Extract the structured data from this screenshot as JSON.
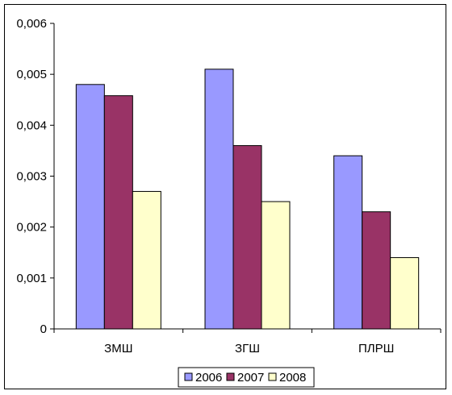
{
  "chart_data": {
    "type": "bar",
    "categories": [
      "ЗМШ",
      "ЗГШ",
      "ПЛРШ"
    ],
    "series": [
      {
        "name": "2006",
        "color": "#9999ff",
        "values": [
          0.0048,
          0.0051,
          0.0034
        ]
      },
      {
        "name": "2007",
        "color": "#993366",
        "values": [
          0.00458,
          0.0036,
          0.0023
        ]
      },
      {
        "name": "2008",
        "color": "#ffffcc",
        "values": [
          0.0027,
          0.0025,
          0.0014
        ]
      }
    ],
    "y_ticks": [
      "0",
      "0,001",
      "0,002",
      "0,003",
      "0,004",
      "0,005",
      "0,006"
    ],
    "ylim": [
      0,
      0.006
    ],
    "grid": false,
    "legend_position": "bottom-center",
    "title": "",
    "xlabel": "",
    "ylabel": ""
  }
}
